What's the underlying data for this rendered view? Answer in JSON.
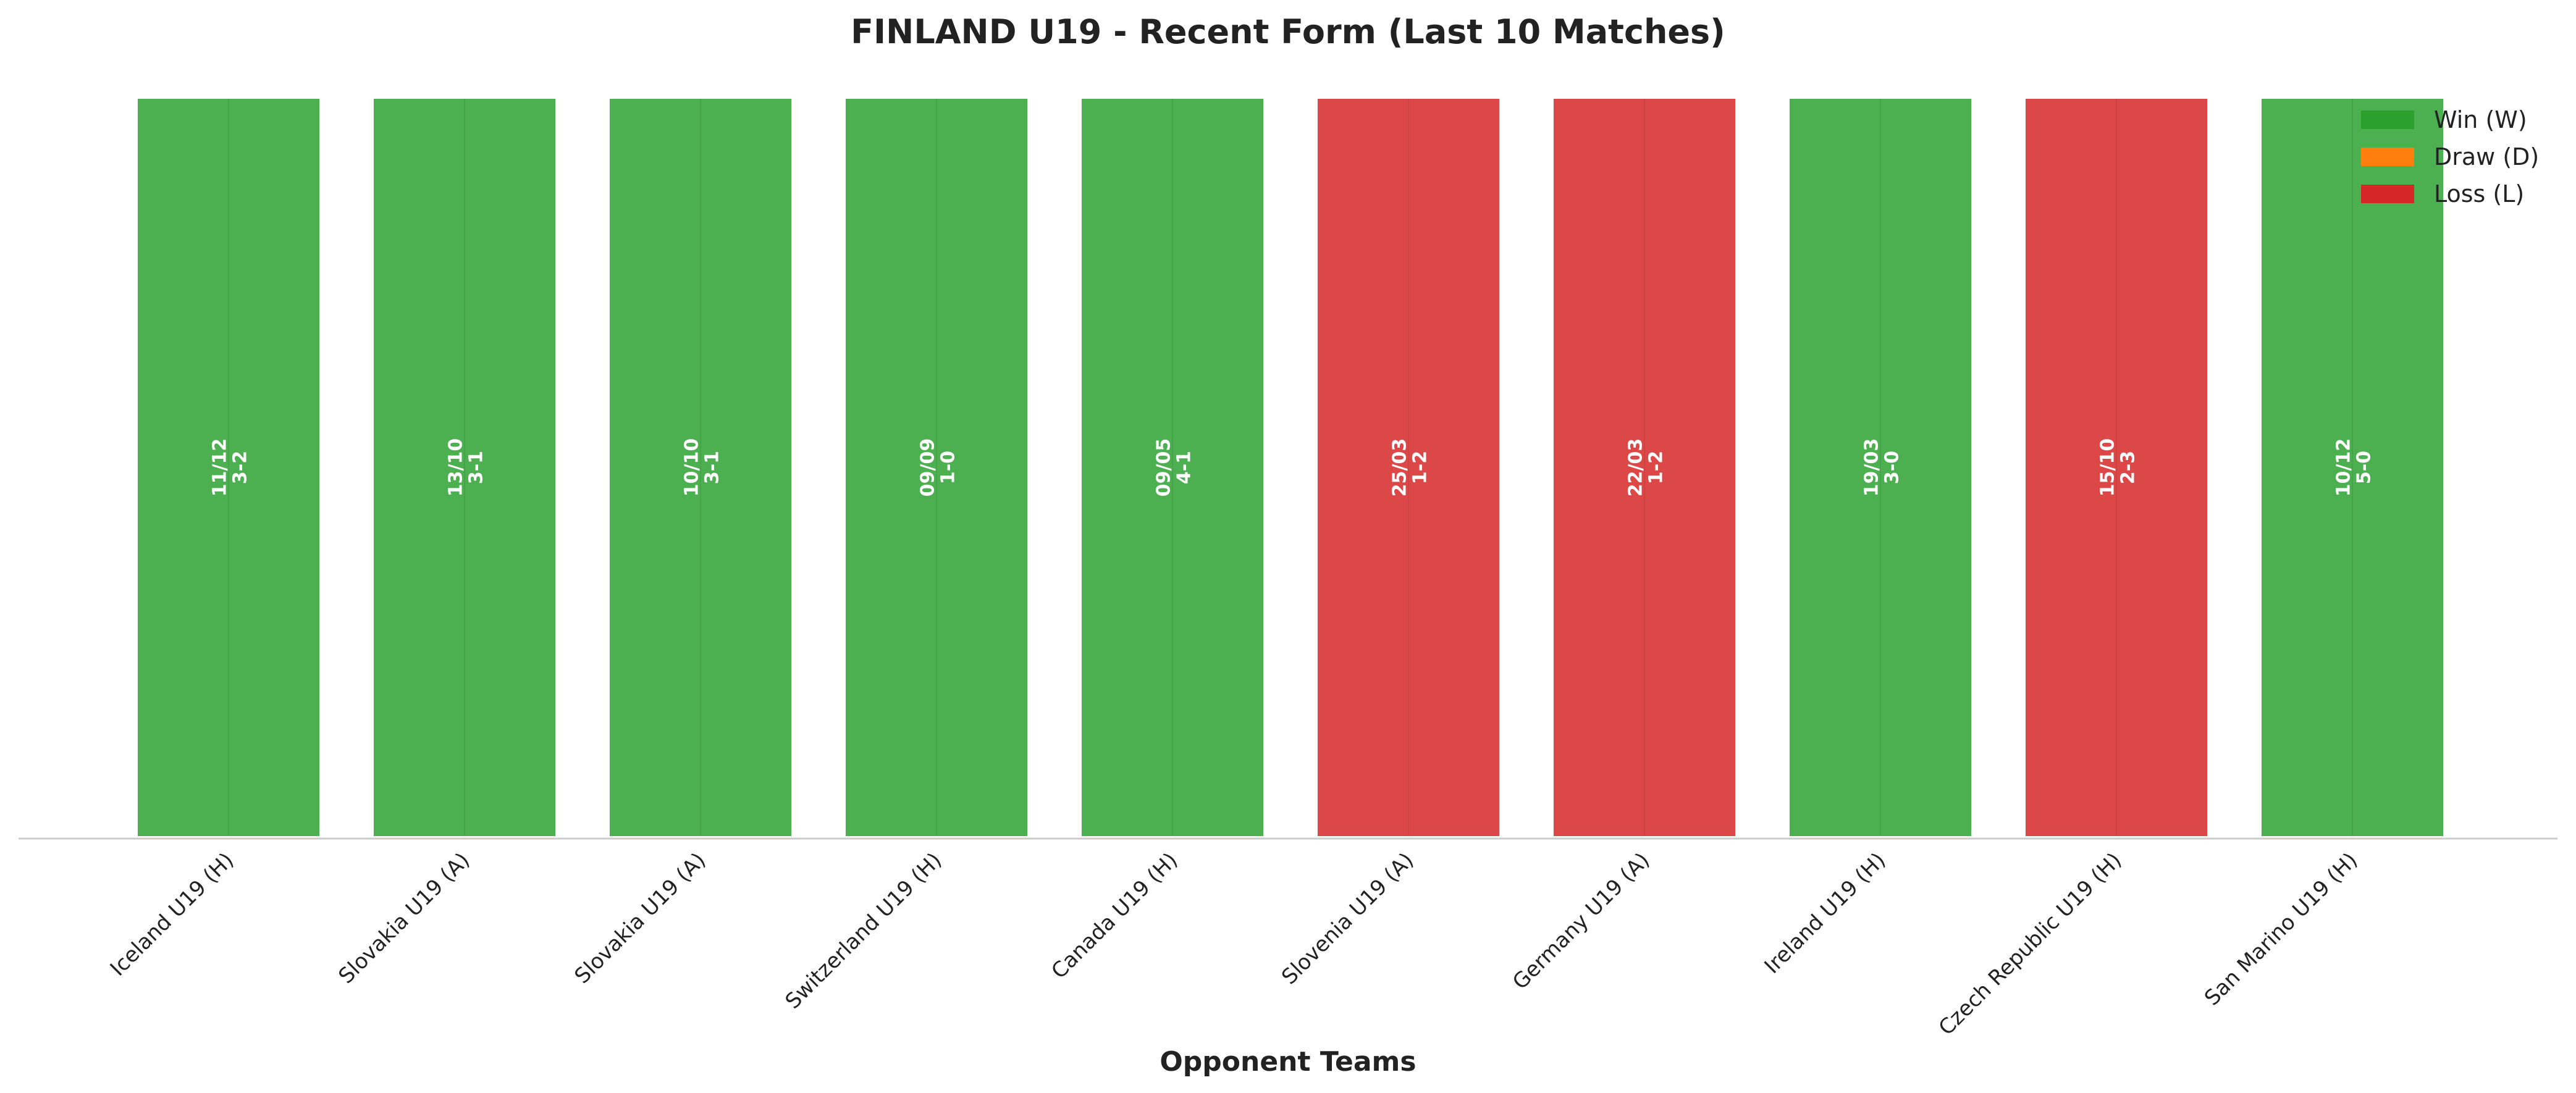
{
  "chart_data": {
    "type": "bar",
    "title": "FINLAND U19 - Recent Form (Last 10 Matches)",
    "xlabel": "Opponent Teams",
    "ylabel": "",
    "ylim": [
      0,
      1
    ],
    "grid": false,
    "legend_position": "top-right",
    "legend": [
      {
        "label": "Win (W)",
        "color": "#2ca02c",
        "result": "W"
      },
      {
        "label": "Draw (D)",
        "color": "#ff7f0e",
        "result": "D"
      },
      {
        "label": "Loss (L)",
        "color": "#d62728",
        "result": "L"
      }
    ],
    "colors": {
      "W": "#4caf50",
      "D": "#ff7f0e",
      "L": "#dc4848"
    },
    "categories": [
      "Iceland U19 (H)",
      "Slovakia U19 (A)",
      "Slovakia U19 (A)",
      "Switzerland U19 (H)",
      "Canada U19 (H)",
      "Slovenia U19 (A)",
      "Germany U19 (A)",
      "Ireland U19 (H)",
      "Czech Republic U19 (H)",
      "San Marino U19 (H)"
    ],
    "values": [
      1,
      1,
      1,
      1,
      1,
      1,
      1,
      1,
      1,
      1
    ],
    "results": [
      "W",
      "W",
      "W",
      "W",
      "W",
      "L",
      "L",
      "W",
      "L",
      "W"
    ],
    "dates": [
      "11/12",
      "13/10",
      "10/10",
      "09/09",
      "09/05",
      "25/03",
      "22/03",
      "19/03",
      "15/10",
      "10/12"
    ],
    "scores": [
      "3-2",
      "3-1",
      "3-1",
      "1-0",
      "4-1",
      "1-2",
      "1-2",
      "3-0",
      "2-3",
      "5-0"
    ]
  }
}
